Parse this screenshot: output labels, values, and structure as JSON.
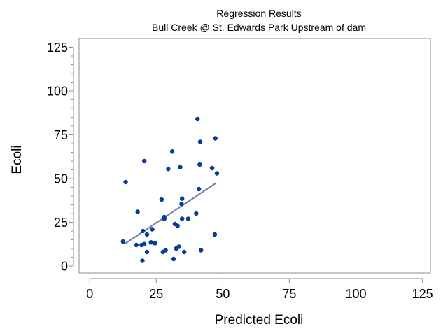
{
  "chart_data": {
    "type": "scatter",
    "title": "Regression Results",
    "subtitle": "Bull Creek @ St. Edwards Park Upstream of dam",
    "xlabel": "Predicted Ecoli",
    "ylabel": "Ecoli",
    "xlim": [
      -4,
      128
    ],
    "ylim": [
      -4,
      130
    ],
    "x_ticks": [
      "0",
      "25",
      "50",
      "75",
      "100",
      "125"
    ],
    "y_ticks": [
      "0",
      "25",
      "50",
      "75",
      "100",
      "125"
    ],
    "x_tick_values": [
      0,
      25,
      50,
      75,
      100,
      125
    ],
    "y_tick_values": [
      0,
      25,
      50,
      75,
      100,
      125
    ],
    "y_minor_step": 5,
    "grid": false,
    "legend": "none",
    "colors": {
      "points": "#0a3a9a",
      "fit_line": "#6a7fa8",
      "frame": "#8c8c8c"
    },
    "points": [
      {
        "x": 12.5,
        "y": 14
      },
      {
        "x": 13.5,
        "y": 48
      },
      {
        "x": 17.5,
        "y": 12
      },
      {
        "x": 18,
        "y": 31
      },
      {
        "x": 19.5,
        "y": 12
      },
      {
        "x": 19.8,
        "y": 3
      },
      {
        "x": 20,
        "y": 20
      },
      {
        "x": 20.5,
        "y": 12.5
      },
      {
        "x": 20.5,
        "y": 60
      },
      {
        "x": 21.5,
        "y": 18
      },
      {
        "x": 21.5,
        "y": 8
      },
      {
        "x": 23,
        "y": 13.5
      },
      {
        "x": 23.5,
        "y": 21
      },
      {
        "x": 24.5,
        "y": 13
      },
      {
        "x": 27,
        "y": 38
      },
      {
        "x": 27.5,
        "y": 8
      },
      {
        "x": 28,
        "y": 27
      },
      {
        "x": 28,
        "y": 28
      },
      {
        "x": 28.5,
        "y": 9
      },
      {
        "x": 29.5,
        "y": 55.5
      },
      {
        "x": 31,
        "y": 65.5
      },
      {
        "x": 31.5,
        "y": 4
      },
      {
        "x": 32,
        "y": 24
      },
      {
        "x": 32.5,
        "y": 10
      },
      {
        "x": 33,
        "y": 23
      },
      {
        "x": 33.5,
        "y": 11
      },
      {
        "x": 34,
        "y": 56.5
      },
      {
        "x": 34.5,
        "y": 35.5
      },
      {
        "x": 34.7,
        "y": 38.5
      },
      {
        "x": 34.7,
        "y": 27
      },
      {
        "x": 35.5,
        "y": 8
      },
      {
        "x": 37,
        "y": 27
      },
      {
        "x": 40,
        "y": 30
      },
      {
        "x": 40.5,
        "y": 84
      },
      {
        "x": 41,
        "y": 44
      },
      {
        "x": 41.3,
        "y": 58
      },
      {
        "x": 41.5,
        "y": 71
      },
      {
        "x": 41.8,
        "y": 9
      },
      {
        "x": 46,
        "y": 56
      },
      {
        "x": 47,
        "y": 18
      },
      {
        "x": 47.2,
        "y": 73
      },
      {
        "x": 47.8,
        "y": 53
      }
    ],
    "fit_line": {
      "x": [
        13,
        47.5
      ],
      "y": [
        12.5,
        47.5
      ]
    }
  }
}
